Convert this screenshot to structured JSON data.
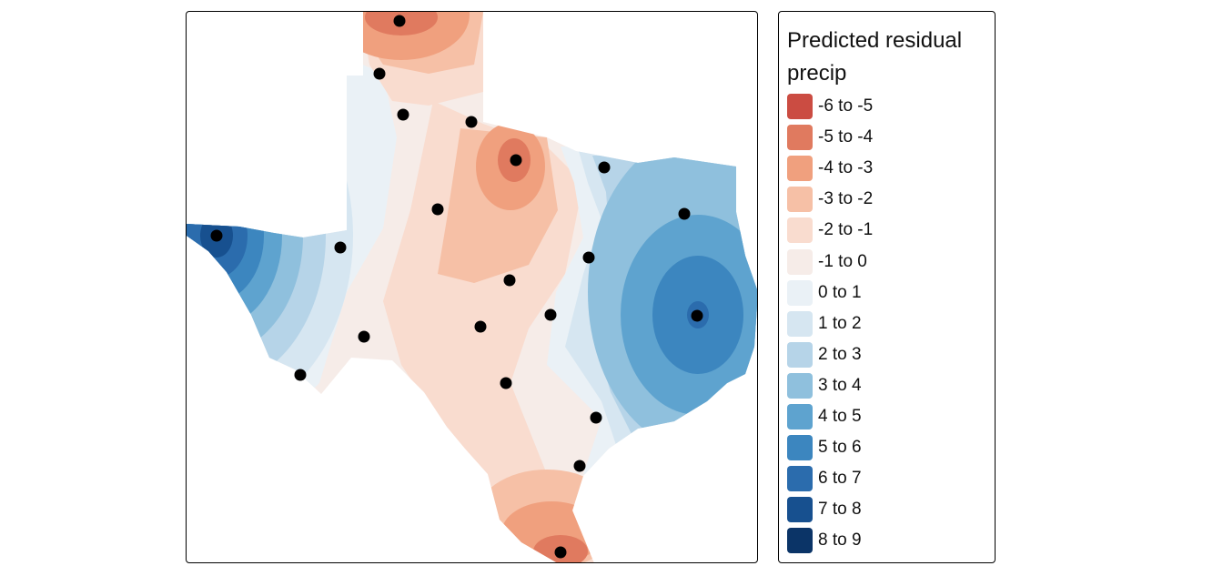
{
  "legend": {
    "title": "Predicted residual precip",
    "classes": [
      {
        "label": "-6 to -5",
        "color": "#cb4c42"
      },
      {
        "label": "-5 to -4",
        "color": "#e07a5f"
      },
      {
        "label": "-4 to -3",
        "color": "#f0a07e"
      },
      {
        "label": "-3 to -2",
        "color": "#f6c0a6"
      },
      {
        "label": "-2 to -1",
        "color": "#f9dccf"
      },
      {
        "label": "-1 to 0",
        "color": "#f6ece8"
      },
      {
        "label": "0 to 1",
        "color": "#eaf1f6"
      },
      {
        "label": "1 to 2",
        "color": "#d6e6f1"
      },
      {
        "label": "2 to 3",
        "color": "#b6d4e8"
      },
      {
        "label": "3 to 4",
        "color": "#8fc0dd"
      },
      {
        "label": "4 to 5",
        "color": "#5ea3cf"
      },
      {
        "label": "5 to 6",
        "color": "#3c86bf"
      },
      {
        "label": "6 to 7",
        "color": "#2b6cad"
      },
      {
        "label": "7 to 8",
        "color": "#17508f"
      },
      {
        "label": "8 to 9",
        "color": "#0b3467"
      }
    ]
  },
  "map": {
    "region": "Texas",
    "stations_count": 20
  }
}
